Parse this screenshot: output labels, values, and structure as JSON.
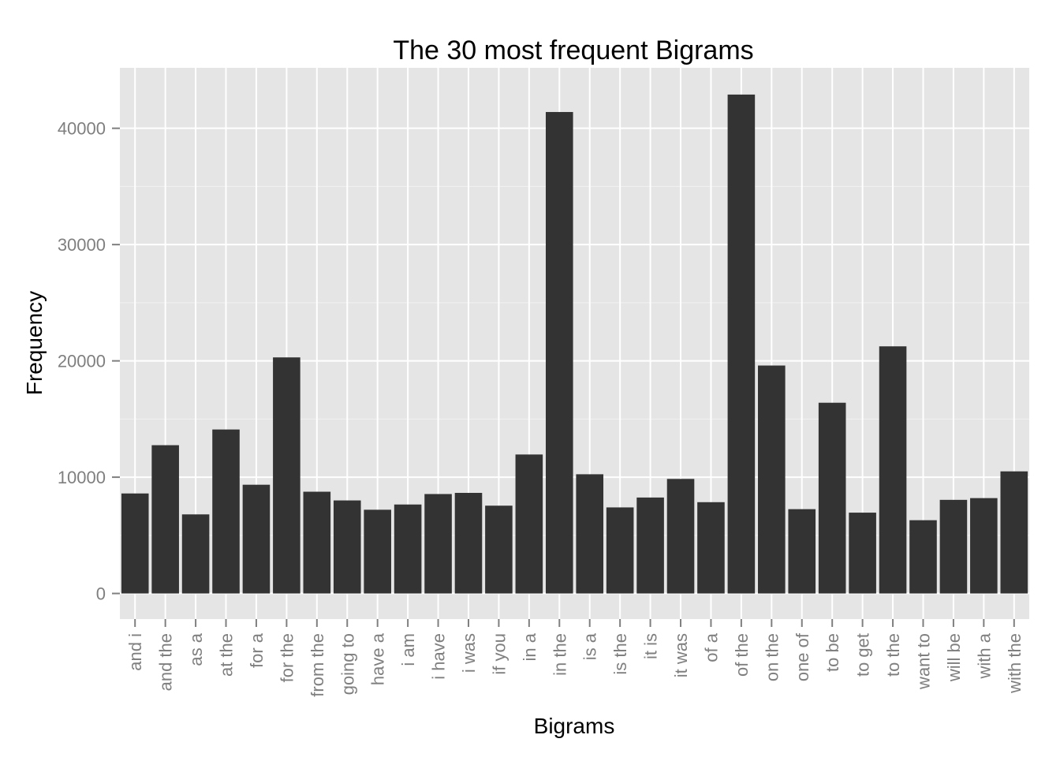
{
  "chart_data": {
    "type": "bar",
    "title": "The 30 most frequent Bigrams",
    "xlabel": "Bigrams",
    "ylabel": "Frequency",
    "ylim": [
      -2200,
      45200
    ],
    "yticks": [
      0,
      10000,
      20000,
      30000,
      40000
    ],
    "ytick_labels": [
      "0",
      "10000",
      "20000",
      "30000",
      "40000"
    ],
    "grid": true,
    "legend": "none",
    "colors": {
      "panel_background": "#e5e5e5",
      "grid_major": "#ffffff",
      "grid_minor": "#f2f2f2",
      "bar": "#333333",
      "tick_label": "#7f7f7f",
      "text": "#000000"
    },
    "categories": [
      "and i",
      "and the",
      "as a",
      "at the",
      "for a",
      "for the",
      "from the",
      "going to",
      "have a",
      "i am",
      "i have",
      "i was",
      "if you",
      "in a",
      "in the",
      "is a",
      "is the",
      "it is",
      "it was",
      "of a",
      "of the",
      "on the",
      "one of",
      "to be",
      "to get",
      "to the",
      "want to",
      "will be",
      "with a",
      "with the"
    ],
    "values": [
      8600,
      12750,
      6800,
      14100,
      9350,
      20300,
      8750,
      8000,
      7200,
      7650,
      8550,
      8650,
      7550,
      11950,
      41400,
      10250,
      7400,
      8250,
      9850,
      7850,
      42900,
      19600,
      7250,
      16400,
      6950,
      21250,
      6300,
      8050,
      8200,
      10500
    ]
  }
}
